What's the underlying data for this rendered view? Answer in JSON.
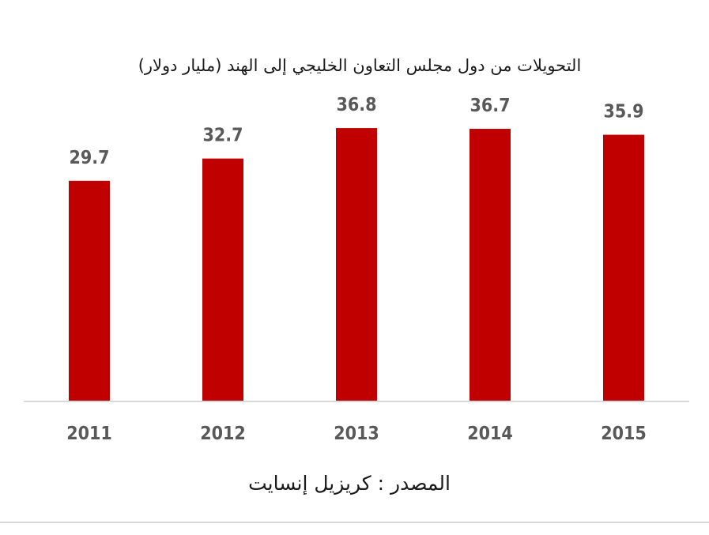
{
  "chart_data": {
    "type": "bar",
    "title": "التحويلات من دول مجلس التعاون الخليجي إلى الهند (مليار دولار)",
    "categories": [
      "2011",
      "2012",
      "2013",
      "2014",
      "2015"
    ],
    "values": [
      29.7,
      32.7,
      36.8,
      36.7,
      35.9
    ],
    "value_labels": [
      "29.7",
      "32.7",
      "36.8",
      "36.7",
      "35.9"
    ],
    "xlabel": "",
    "ylabel": "",
    "ylim": [
      0,
      40
    ],
    "grid": false,
    "bar_color": "#c00000",
    "source": "المصدر : كريزيل إنسايت"
  }
}
